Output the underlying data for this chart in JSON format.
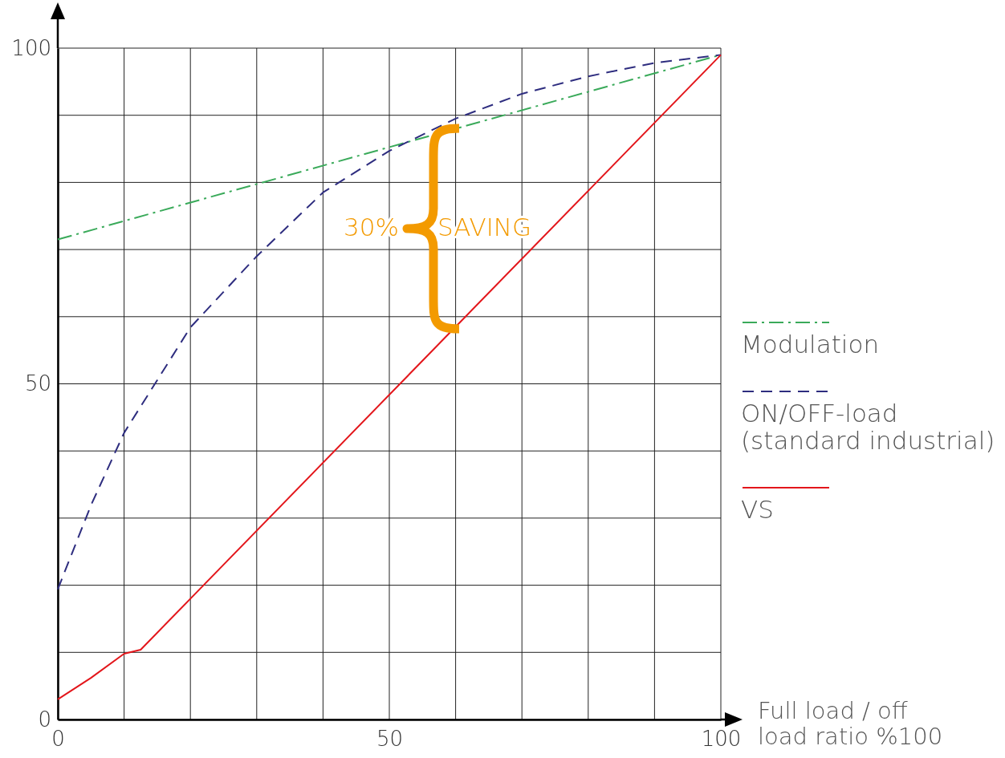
{
  "chart_data": {
    "type": "line",
    "xlabel": "Full load / off load ratio %100",
    "x": [
      0,
      5,
      10,
      20,
      30,
      40,
      50,
      60,
      70,
      80,
      90,
      100
    ],
    "xlim": [
      0,
      100
    ],
    "ylim": [
      0,
      100
    ],
    "xticks": [
      0,
      {
        "value": 10,
        "label": null
      },
      {
        "value": 20,
        "label": null
      },
      {
        "value": 30,
        "label": null
      },
      {
        "value": 40,
        "label": null
      },
      50,
      {
        "value": 60,
        "label": null
      },
      {
        "value": 70,
        "label": null
      },
      {
        "value": 80,
        "label": null
      },
      {
        "value": 90,
        "label": null
      },
      100
    ],
    "yticks": [
      0,
      {
        "value": 10,
        "label": null
      },
      {
        "value": 20,
        "label": null
      },
      {
        "value": 30,
        "label": null
      },
      {
        "value": 40,
        "label": null
      },
      50,
      {
        "value": 60,
        "label": null
      },
      {
        "value": 70,
        "label": null
      },
      {
        "value": 80,
        "label": null
      },
      {
        "value": 90,
        "label": null
      },
      100
    ],
    "grid": true,
    "legend": "right",
    "marker": "none",
    "series": [
      {
        "name": "Modulation",
        "color": "#3aaa5a",
        "line_style": "dashdot",
        "x": [
          0,
          100
        ],
        "values": [
          71.5,
          99
        ]
      },
      {
        "name": "ON/OFF-load (standard industrial)",
        "color": "#2e2d7f",
        "line_style": "dashed",
        "values": [
          19.4,
          31.9,
          42.7,
          58.4,
          69,
          78.5,
          84.7,
          89.5,
          93.2,
          95.8,
          97.8,
          99
        ]
      },
      {
        "name": "VS",
        "color": "#e3161b",
        "line_style": "solid",
        "x": [
          0,
          5,
          10,
          12.5,
          100
        ],
        "values": [
          3,
          6.2,
          9.8,
          10.4,
          99
        ]
      }
    ],
    "annotations": [
      "30%",
      "SAVING"
    ]
  }
}
